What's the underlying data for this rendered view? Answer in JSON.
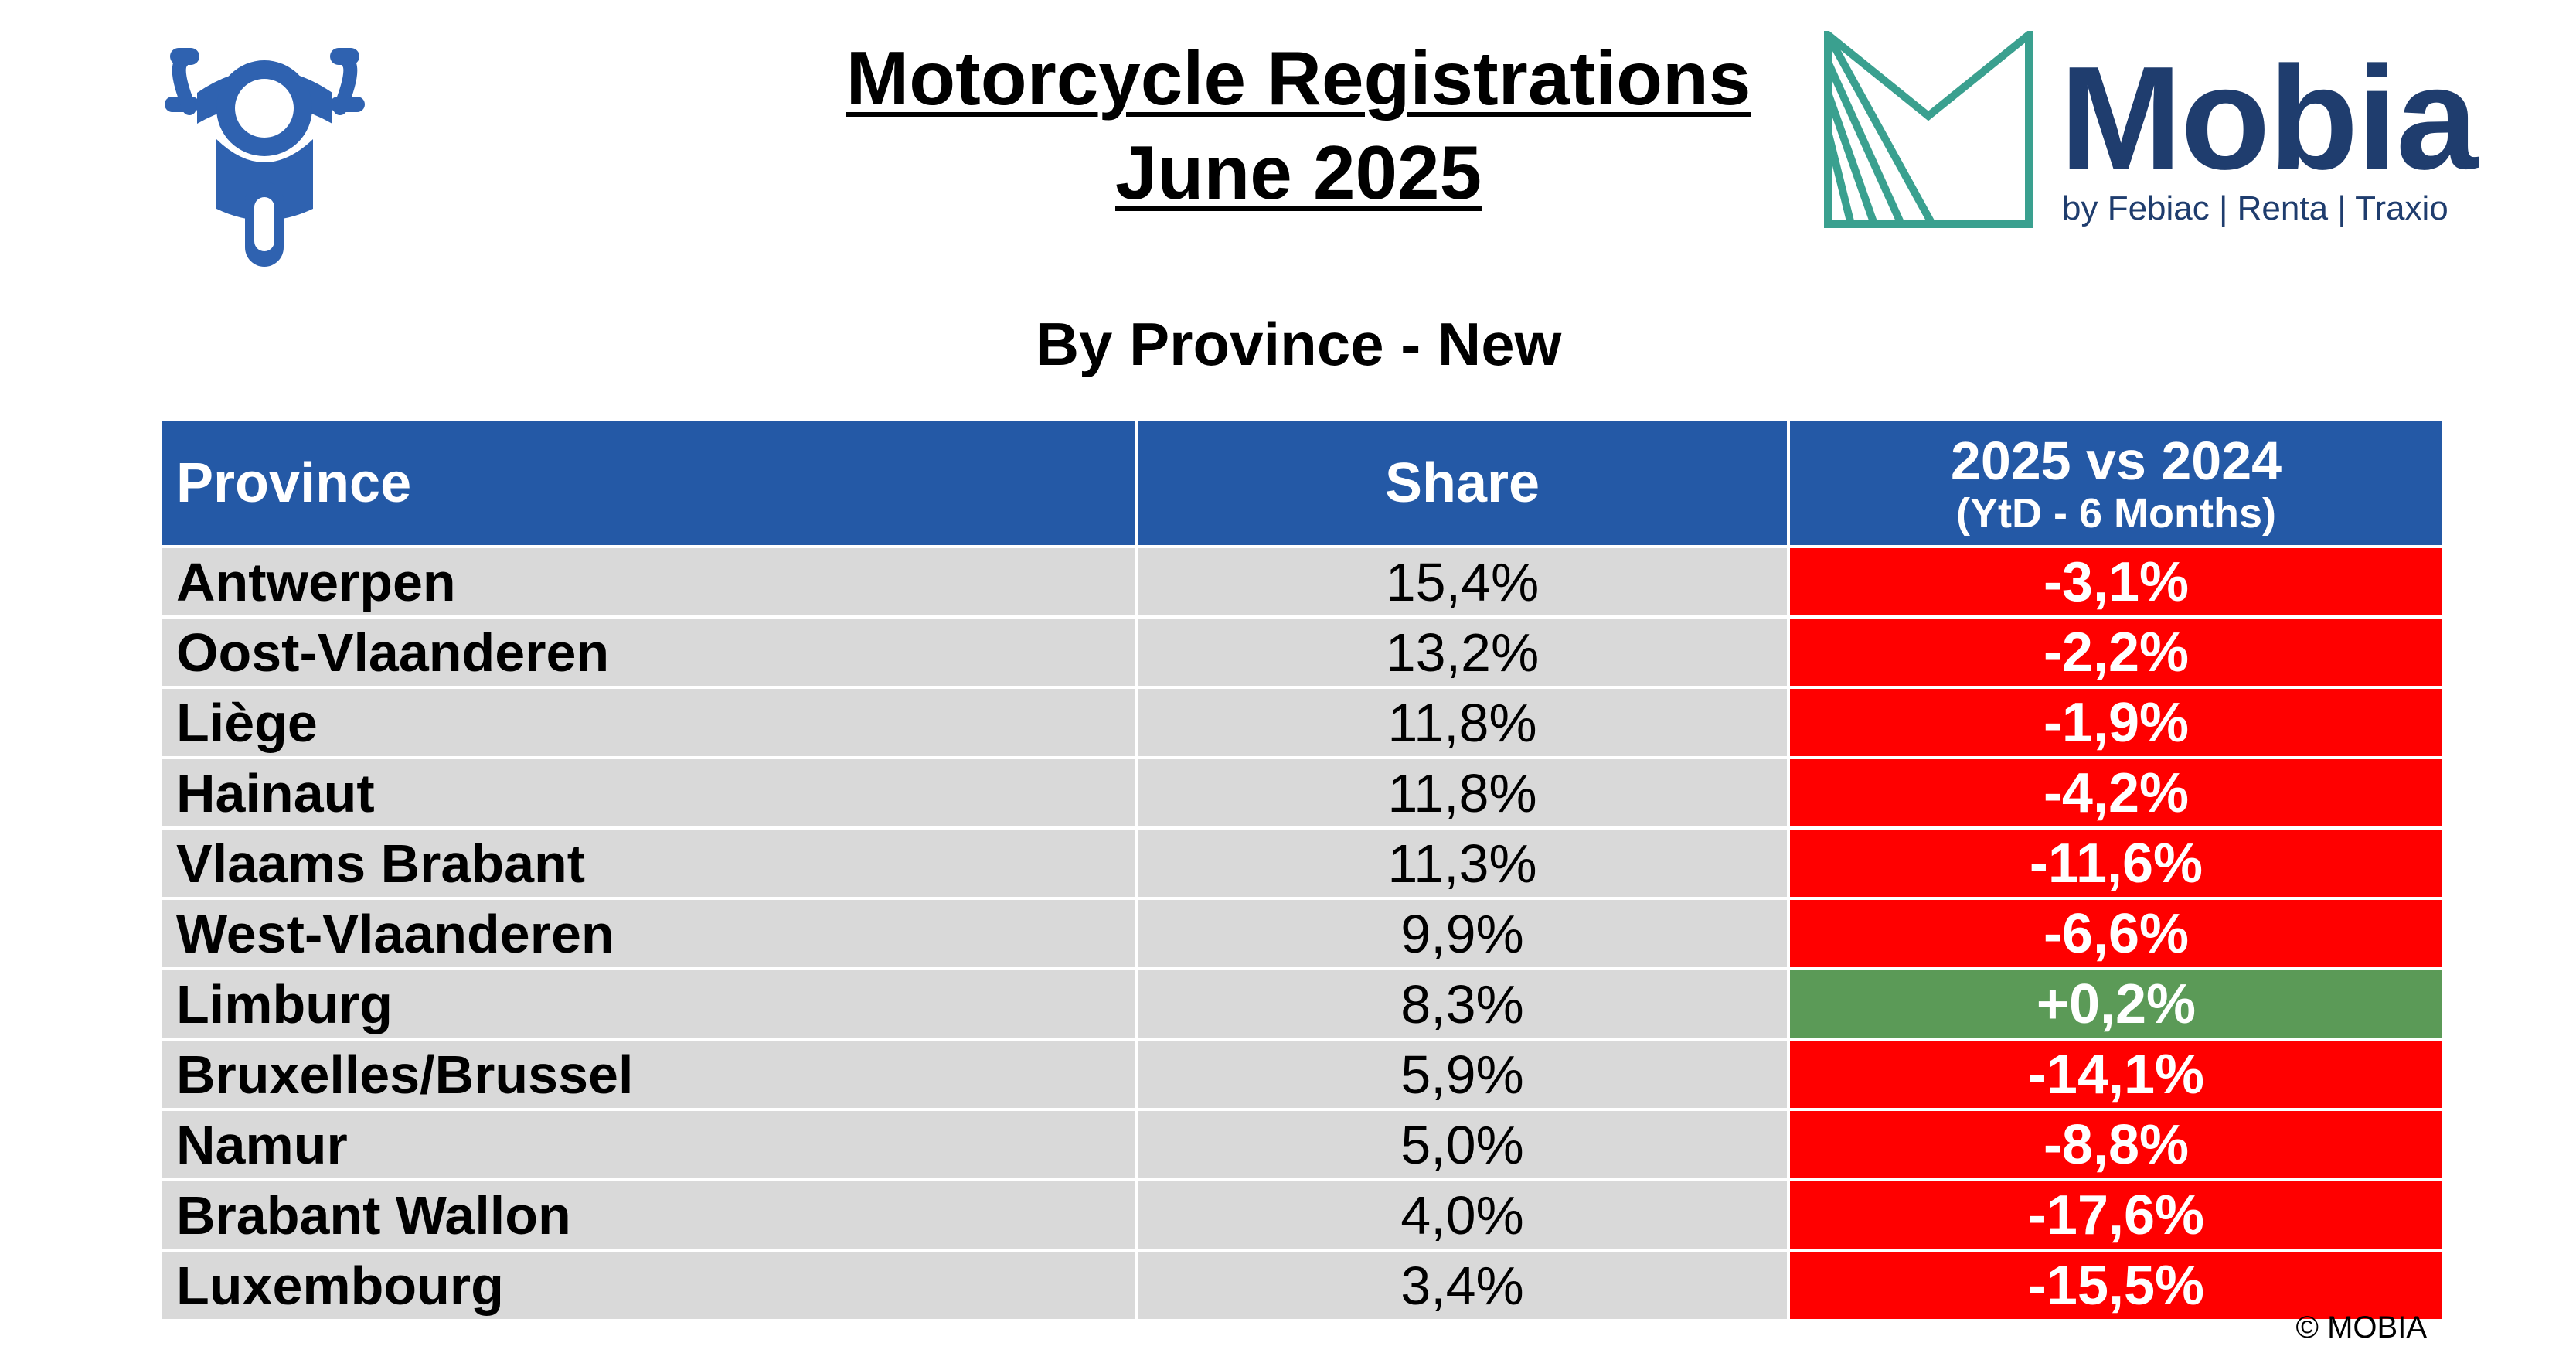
{
  "header": {
    "title_line1": "Motorcycle Registrations",
    "title_line2": "June 2025",
    "subtitle": "By Province - New"
  },
  "logo": {
    "name": "Mobia",
    "tagline": "by Febiac | Renta | Traxio",
    "brand_color": "#1f3d6e",
    "mark_color": "#3aa08f"
  },
  "icons": {
    "vehicle": "motorcycle-icon"
  },
  "table": {
    "headers": {
      "province": "Province",
      "share": "Share",
      "change_line1": "2025 vs 2024",
      "change_line2": "(YtD - 6 Months)"
    },
    "header_color": "#2459a6",
    "negative_color": "#ff0000",
    "positive_color": "#5b9a57",
    "rows": [
      {
        "province": "Antwerpen",
        "share": "15,4%",
        "change": "-3,1%"
      },
      {
        "province": "Oost-Vlaanderen",
        "share": "13,2%",
        "change": "-2,2%"
      },
      {
        "province": "Liège",
        "share": "11,8%",
        "change": "-1,9%"
      },
      {
        "province": "Hainaut",
        "share": "11,8%",
        "change": "-4,2%"
      },
      {
        "province": "Vlaams Brabant",
        "share": "11,3%",
        "change": "-11,6%"
      },
      {
        "province": "West-Vlaanderen",
        "share": "9,9%",
        "change": "-6,6%"
      },
      {
        "province": "Limburg",
        "share": "8,3%",
        "change": "+0,2%"
      },
      {
        "province": "Bruxelles/Brussel",
        "share": "5,9%",
        "change": "-14,1%"
      },
      {
        "province": "Namur",
        "share": "5,0%",
        "change": "-8,8%"
      },
      {
        "province": "Brabant Wallon",
        "share": "4,0%",
        "change": "-17,6%"
      },
      {
        "province": "Luxembourg",
        "share": "3,4%",
        "change": "-15,5%"
      }
    ]
  },
  "footer": {
    "copyright": "© MOBIA"
  }
}
